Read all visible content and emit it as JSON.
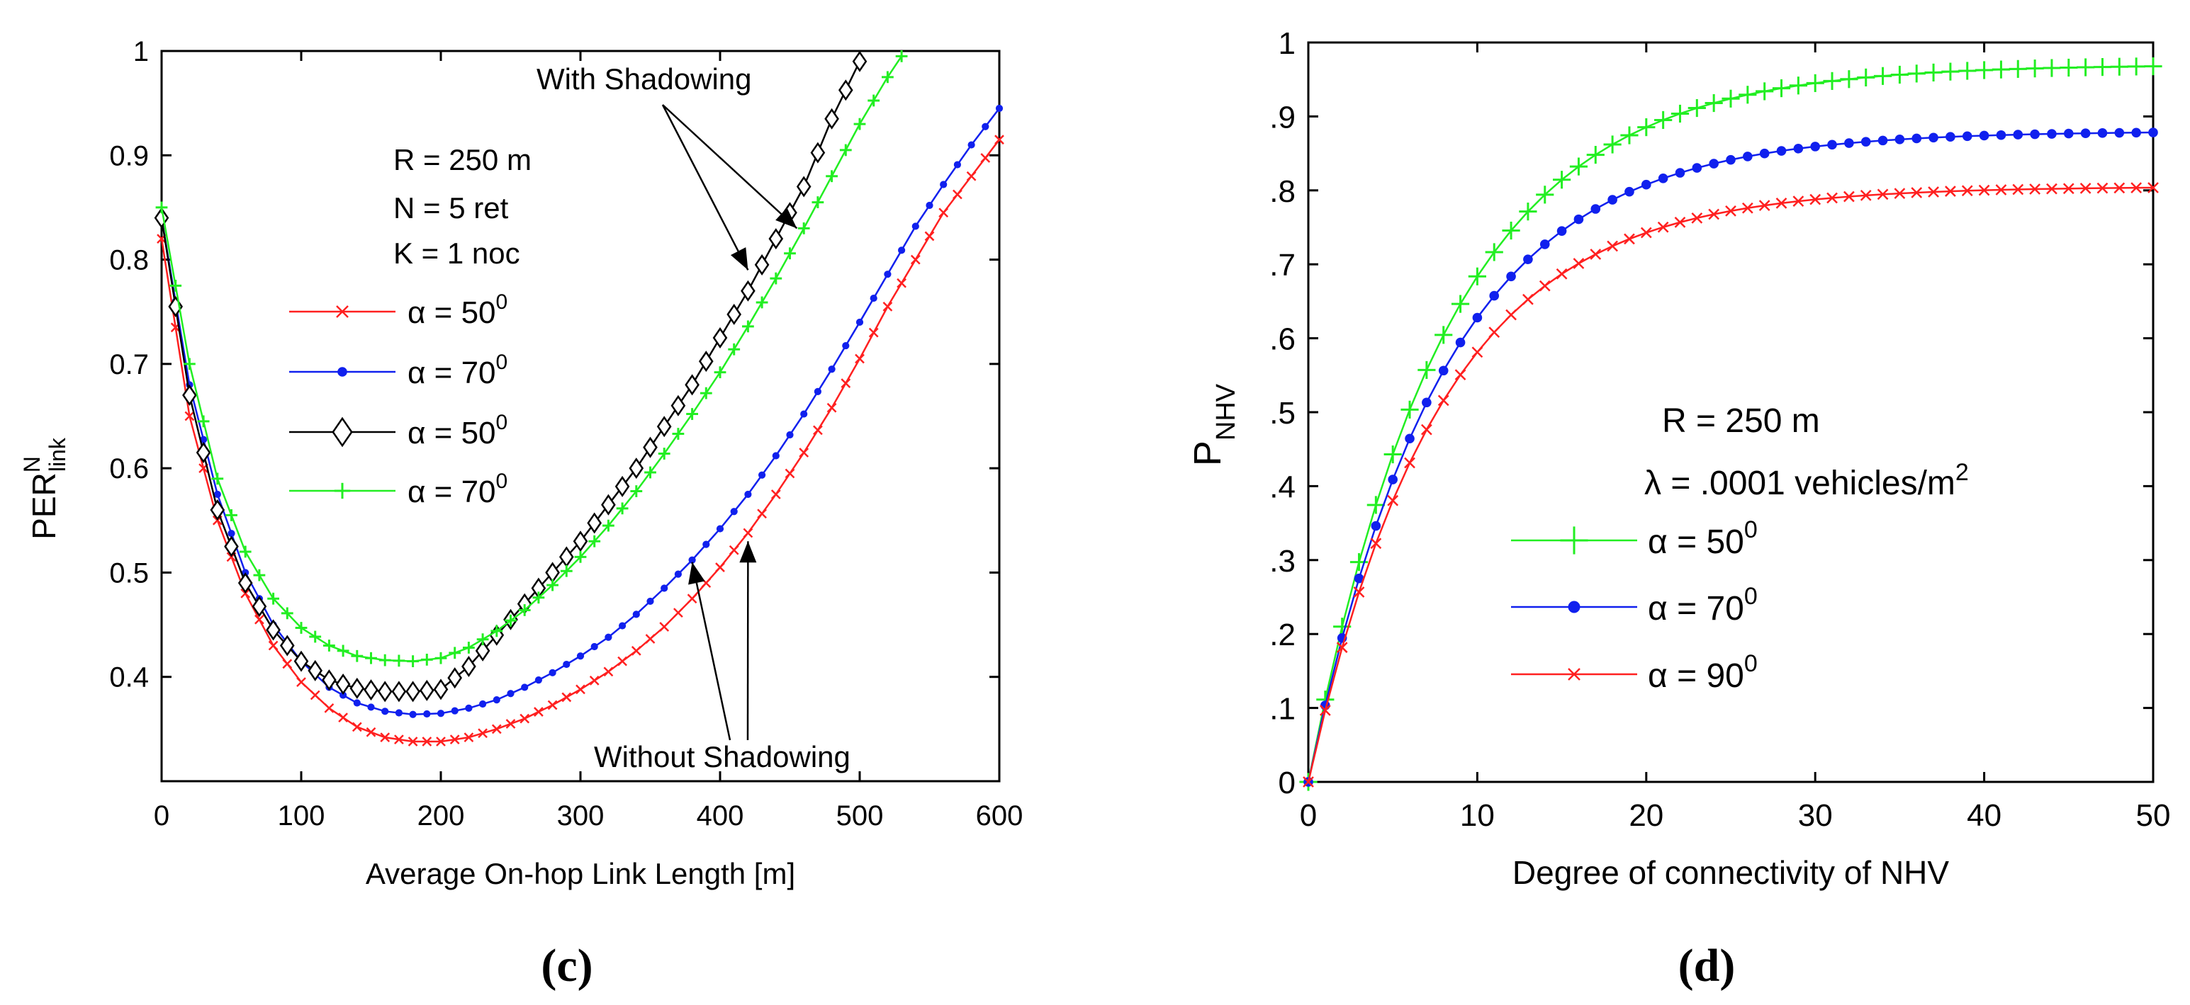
{
  "chart_data": [
    {
      "panel_label": "(c)",
      "type": "line",
      "xlabel": "Average On-hop Link Length [m]",
      "ylabel_base": "PER",
      "ylabel_sup": "N",
      "ylabel_sub": "link",
      "xlim": [
        0,
        600
      ],
      "ylim": [
        0.3,
        1.0
      ],
      "xticks": [
        0,
        100,
        200,
        300,
        400,
        500,
        600
      ],
      "xtick_labels": [
        "0",
        "100",
        "200",
        "300",
        "400",
        "500",
        "600"
      ],
      "yticks": [
        0.4,
        0.5,
        0.6,
        0.7,
        0.8,
        0.9,
        1.0
      ],
      "ytick_labels": [
        "0.4",
        "0.5",
        "0.6",
        "0.7",
        "0.8",
        "0.9",
        "1"
      ],
      "params": [
        "R = 250 m",
        "N = 5 ret",
        "K = 1 noc"
      ],
      "annotations": [
        {
          "text": "With Shadowing",
          "arrows_to": [
            [
              420,
              0.79
            ],
            [
              455,
              0.83
            ]
          ]
        },
        {
          "text": "Without Shadowing",
          "arrows_to": [
            [
              380,
              0.51
            ],
            [
              420,
              0.53
            ]
          ]
        }
      ],
      "series": [
        {
          "name": "α = 50",
          "sup": "0",
          "color": "#ff2020",
          "marker": "x",
          "group": "without",
          "x": [
            0,
            20,
            40,
            60,
            80,
            100,
            120,
            140,
            160,
            180,
            200,
            220,
            240,
            260,
            280,
            300,
            320,
            340,
            360,
            380,
            400,
            420,
            440,
            460,
            480,
            500,
            520,
            540,
            560,
            580,
            600
          ],
          "y": [
            0.82,
            0.65,
            0.55,
            0.48,
            0.43,
            0.395,
            0.37,
            0.352,
            0.342,
            0.338,
            0.338,
            0.342,
            0.35,
            0.36,
            0.373,
            0.388,
            0.405,
            0.425,
            0.448,
            0.475,
            0.505,
            0.538,
            0.575,
            0.615,
            0.658,
            0.705,
            0.755,
            0.8,
            0.845,
            0.88,
            0.915
          ]
        },
        {
          "name": "α = 70",
          "sup": "0",
          "color": "#1020ee",
          "marker": "dot",
          "group": "without",
          "x": [
            0,
            20,
            40,
            60,
            80,
            100,
            120,
            140,
            160,
            180,
            200,
            220,
            240,
            260,
            280,
            300,
            320,
            340,
            360,
            380,
            400,
            420,
            440,
            460,
            480,
            500,
            520,
            540,
            560,
            580,
            600
          ],
          "y": [
            0.84,
            0.68,
            0.575,
            0.5,
            0.45,
            0.415,
            0.39,
            0.375,
            0.367,
            0.364,
            0.365,
            0.37,
            0.378,
            0.39,
            0.404,
            0.42,
            0.438,
            0.46,
            0.485,
            0.512,
            0.542,
            0.575,
            0.612,
            0.652,
            0.695,
            0.74,
            0.786,
            0.832,
            0.872,
            0.91,
            0.945
          ]
        },
        {
          "name": "α = 50",
          "sup": "0",
          "color": "#000000",
          "marker": "diamond",
          "group": "with",
          "x": [
            0,
            20,
            40,
            60,
            80,
            100,
            120,
            140,
            160,
            180,
            200,
            220,
            240,
            260,
            280,
            300,
            320,
            340,
            360,
            380,
            400,
            420,
            440,
            460,
            480,
            500
          ],
          "y": [
            0.84,
            0.67,
            0.56,
            0.49,
            0.445,
            0.415,
            0.397,
            0.389,
            0.386,
            0.386,
            0.388,
            0.41,
            0.44,
            0.47,
            0.5,
            0.53,
            0.565,
            0.6,
            0.64,
            0.68,
            0.725,
            0.77,
            0.82,
            0.87,
            0.935,
            0.99
          ]
        },
        {
          "name": "α = 70",
          "sup": "0",
          "color": "#22ee22",
          "marker": "plus",
          "group": "with",
          "x": [
            0,
            20,
            40,
            60,
            80,
            100,
            120,
            140,
            160,
            180,
            200,
            220,
            240,
            260,
            280,
            300,
            320,
            340,
            360,
            380,
            400,
            420,
            440,
            460,
            480,
            500,
            520,
            530
          ],
          "y": [
            0.85,
            0.7,
            0.59,
            0.52,
            0.475,
            0.447,
            0.43,
            0.42,
            0.416,
            0.415,
            0.418,
            0.428,
            0.444,
            0.464,
            0.488,
            0.515,
            0.545,
            0.578,
            0.614,
            0.652,
            0.692,
            0.736,
            0.782,
            0.83,
            0.88,
            0.93,
            0.975,
            0.995
          ]
        }
      ]
    },
    {
      "panel_label": "(d)",
      "type": "line",
      "xlabel": "Degree of connectivity of NHV",
      "ylabel_base": "P",
      "ylabel_sub": "NHV",
      "xlim": [
        0,
        50
      ],
      "ylim": [
        0,
        1.0
      ],
      "xticks": [
        0,
        10,
        20,
        30,
        40,
        50
      ],
      "xtick_labels": [
        "0",
        "10",
        "20",
        "30",
        "40",
        "50"
      ],
      "yticks": [
        0,
        0.1,
        0.2,
        0.3,
        0.4,
        0.5,
        0.6,
        0.7,
        0.8,
        0.9,
        1.0
      ],
      "ytick_labels": [
        "0",
        ".1",
        ".2",
        ".3",
        ".4",
        ".5",
        ".6",
        ".7",
        ".8",
        ".9",
        "1"
      ],
      "params": [
        "R = 250 m"
      ],
      "density_label": "λ = .0001 vehicles/m",
      "density_sup": "2",
      "series": [
        {
          "name": "α = 50",
          "sup": "0",
          "color": "#22ee22",
          "marker": "plus",
          "asymptote": 0.97,
          "rate": 0.122
        },
        {
          "name": "α = 70",
          "sup": "0",
          "color": "#1020ee",
          "marker": "dot",
          "asymptote": 0.88,
          "rate": 0.125
        },
        {
          "name": "α = 90",
          "sup": "0",
          "color": "#ff2020",
          "marker": "x",
          "asymptote": 0.805,
          "rate": 0.128
        }
      ]
    }
  ]
}
